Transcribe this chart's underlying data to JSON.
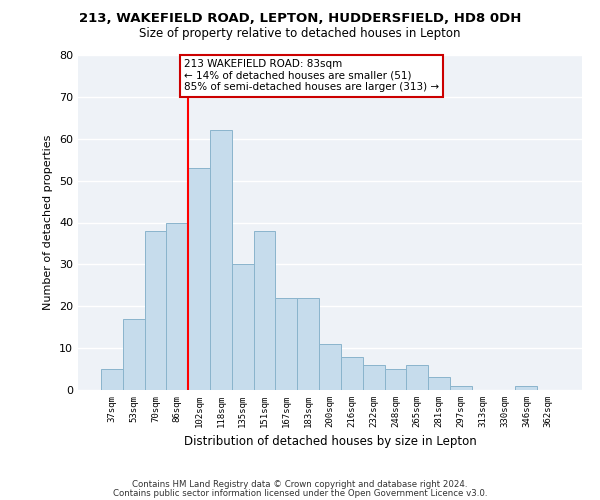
{
  "title": "213, WAKEFIELD ROAD, LEPTON, HUDDERSFIELD, HD8 0DH",
  "subtitle": "Size of property relative to detached houses in Lepton",
  "xlabel": "Distribution of detached houses by size in Lepton",
  "ylabel": "Number of detached properties",
  "bar_labels": [
    "37sqm",
    "53sqm",
    "70sqm",
    "86sqm",
    "102sqm",
    "118sqm",
    "135sqm",
    "151sqm",
    "167sqm",
    "183sqm",
    "200sqm",
    "216sqm",
    "232sqm",
    "248sqm",
    "265sqm",
    "281sqm",
    "297sqm",
    "313sqm",
    "330sqm",
    "346sqm",
    "362sqm"
  ],
  "bar_values": [
    5,
    17,
    38,
    40,
    53,
    62,
    30,
    38,
    22,
    22,
    11,
    8,
    6,
    5,
    6,
    3,
    1,
    0,
    0,
    1,
    0
  ],
  "bar_color": "#c6dcec",
  "bar_edge_color": "#8ab4cc",
  "vline_x_index": 3,
  "vline_color": "red",
  "annotation_text": "213 WAKEFIELD ROAD: 83sqm\n← 14% of detached houses are smaller (51)\n85% of semi-detached houses are larger (313) →",
  "annotation_box_color": "white",
  "annotation_box_edge": "#cc0000",
  "ylim": [
    0,
    80
  ],
  "yticks": [
    0,
    10,
    20,
    30,
    40,
    50,
    60,
    70,
    80
  ],
  "footer1": "Contains HM Land Registry data © Crown copyright and database right 2024.",
  "footer2": "Contains public sector information licensed under the Open Government Licence v3.0.",
  "bg_color": "#eef2f7",
  "grid_color": "#ffffff",
  "title_fontsize": 9.5,
  "subtitle_fontsize": 8.5
}
